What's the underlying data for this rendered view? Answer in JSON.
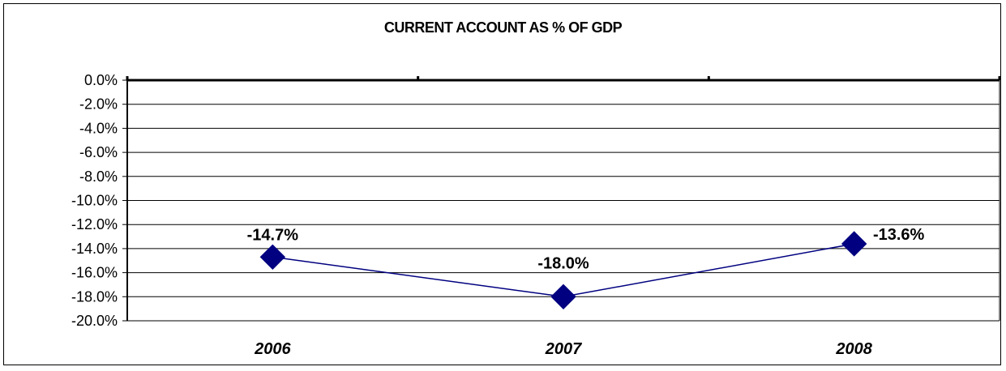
{
  "chart_data": {
    "type": "line",
    "title": "CURRENT ACCOUNT  AS % OF GDP",
    "categories": [
      "2006",
      "2007",
      "2008"
    ],
    "series": [
      {
        "values": [
          -14.7,
          -18.0,
          -13.6
        ],
        "data_labels": [
          "-14.7%",
          "-18.0%",
          "-13.6%"
        ]
      }
    ],
    "ylim": [
      -20,
      0
    ],
    "yticks": [
      0,
      -2,
      -4,
      -6,
      -8,
      -10,
      -12,
      -14,
      -16,
      -18,
      -20
    ],
    "ytick_labels": [
      "0.0%",
      "-2.0%",
      "-4.0%",
      "-6.0%",
      "-8.0%",
      "-10.0%",
      "-12.0%",
      "-14.0%",
      "-16.0%",
      "-18.0%",
      "-20.0%"
    ],
    "xlabel": "",
    "ylabel": "",
    "grid": true,
    "colors": {
      "series": "#000080",
      "grid": "#000000"
    }
  }
}
